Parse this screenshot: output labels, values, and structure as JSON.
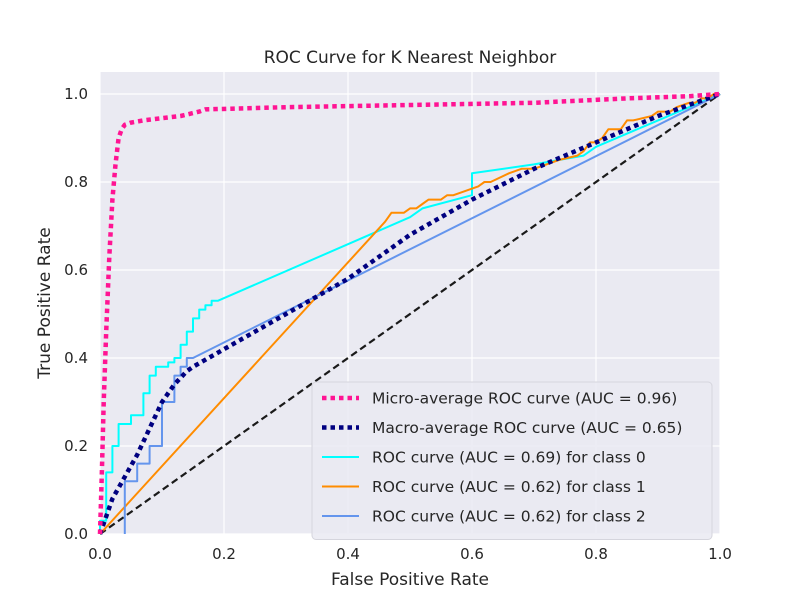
{
  "chart_data": {
    "type": "line",
    "title": "ROC Curve for K Nearest Neighbor",
    "xlabel": "False Positive Rate",
    "ylabel": "True Positive Rate",
    "xlim": [
      0.0,
      1.0
    ],
    "ylim": [
      0.0,
      1.05
    ],
    "xticks": [
      "0.0",
      "0.2",
      "0.4",
      "0.6",
      "0.8",
      "1.0"
    ],
    "yticks": [
      "0.0",
      "0.2",
      "0.4",
      "0.6",
      "0.8",
      "1.0"
    ],
    "grid": true,
    "legend_position": "lower-right",
    "series": [
      {
        "name": "Micro-average ROC curve (AUC = 0.96)",
        "color": "#ff1493",
        "style": "dotted",
        "x": [
          0,
          0.003,
          0.006,
          0.01,
          0.015,
          0.02,
          0.025,
          0.03,
          0.035,
          0.04,
          0.05,
          0.07,
          0.1,
          0.13,
          0.16,
          0.17,
          0.3,
          0.5,
          0.7,
          0.85,
          0.95,
          1.0
        ],
        "y": [
          0,
          0.14,
          0.3,
          0.46,
          0.63,
          0.76,
          0.84,
          0.9,
          0.92,
          0.93,
          0.935,
          0.94,
          0.945,
          0.95,
          0.96,
          0.965,
          0.97,
          0.975,
          0.98,
          0.99,
          0.995,
          1.0
        ]
      },
      {
        "name": "Macro-average ROC curve (AUC = 0.65)",
        "color": "#000080",
        "style": "dotted",
        "x": [
          0,
          0.01,
          0.02,
          0.04,
          0.06,
          0.08,
          0.1,
          0.12,
          0.14,
          0.15,
          0.2,
          0.3,
          0.4,
          0.46,
          0.5,
          0.6,
          0.7,
          0.8,
          0.9,
          1.0
        ],
        "y": [
          0,
          0.04,
          0.08,
          0.13,
          0.18,
          0.24,
          0.3,
          0.34,
          0.37,
          0.38,
          0.42,
          0.5,
          0.58,
          0.64,
          0.68,
          0.76,
          0.83,
          0.89,
          0.95,
          1.0
        ]
      },
      {
        "name": "ROC curve (AUC = 0.69) for class 0",
        "color": "#00ffff",
        "style": "solid",
        "x": [
          0,
          0.0,
          0.01,
          0.01,
          0.02,
          0.02,
          0.03,
          0.03,
          0.05,
          0.05,
          0.07,
          0.07,
          0.08,
          0.08,
          0.09,
          0.09,
          0.11,
          0.11,
          0.12,
          0.12,
          0.13,
          0.13,
          0.14,
          0.14,
          0.15,
          0.15,
          0.16,
          0.16,
          0.17,
          0.17,
          0.18,
          0.18,
          0.19,
          0.5,
          0.52,
          0.6,
          0.6,
          0.7,
          0.78,
          0.8,
          0.9,
          1.0
        ],
        "y": [
          0,
          0.03,
          0.03,
          0.14,
          0.14,
          0.2,
          0.2,
          0.25,
          0.25,
          0.27,
          0.27,
          0.32,
          0.32,
          0.36,
          0.36,
          0.38,
          0.38,
          0.39,
          0.39,
          0.4,
          0.4,
          0.43,
          0.43,
          0.46,
          0.46,
          0.49,
          0.49,
          0.51,
          0.51,
          0.52,
          0.52,
          0.53,
          0.53,
          0.72,
          0.74,
          0.77,
          0.82,
          0.84,
          0.86,
          0.88,
          0.94,
          1.0
        ]
      },
      {
        "name": "ROC curve (AUC = 0.62) for class 1",
        "color": "#ff8c00",
        "style": "solid",
        "x": [
          0,
          0.46,
          0.47,
          0.49,
          0.5,
          0.51,
          0.52,
          0.53,
          0.55,
          0.56,
          0.57,
          0.59,
          0.61,
          0.62,
          0.63,
          0.66,
          0.68,
          0.7,
          0.72,
          0.74,
          0.77,
          0.78,
          0.79,
          0.8,
          0.81,
          0.82,
          0.84,
          0.85,
          0.86,
          0.89,
          0.9,
          0.92,
          0.93,
          0.95,
          0.96,
          0.97,
          0.98,
          0.99,
          1.0
        ],
        "y": [
          0,
          0.71,
          0.73,
          0.73,
          0.74,
          0.74,
          0.75,
          0.76,
          0.76,
          0.77,
          0.77,
          0.78,
          0.79,
          0.8,
          0.8,
          0.82,
          0.83,
          0.83,
          0.84,
          0.85,
          0.86,
          0.87,
          0.89,
          0.89,
          0.9,
          0.92,
          0.92,
          0.94,
          0.94,
          0.95,
          0.96,
          0.96,
          0.97,
          0.98,
          0.98,
          0.99,
          0.99,
          1.0,
          1.0
        ]
      },
      {
        "name": "ROC curve (AUC = 0.62) for class 2",
        "color": "#6495ed",
        "style": "solid",
        "x": [
          0.04,
          0.04,
          0.06,
          0.06,
          0.08,
          0.08,
          0.1,
          0.1,
          0.12,
          0.12,
          0.13,
          0.13,
          0.14,
          0.14,
          0.15,
          1.0
        ],
        "y": [
          0.0,
          0.12,
          0.12,
          0.16,
          0.16,
          0.2,
          0.2,
          0.3,
          0.3,
          0.36,
          0.36,
          0.38,
          0.38,
          0.4,
          0.4,
          1.0
        ]
      },
      {
        "name": "",
        "color": "#1a1a1a",
        "style": "dashed",
        "x": [
          0,
          1.0
        ],
        "y": [
          0,
          1.0
        ]
      }
    ]
  }
}
